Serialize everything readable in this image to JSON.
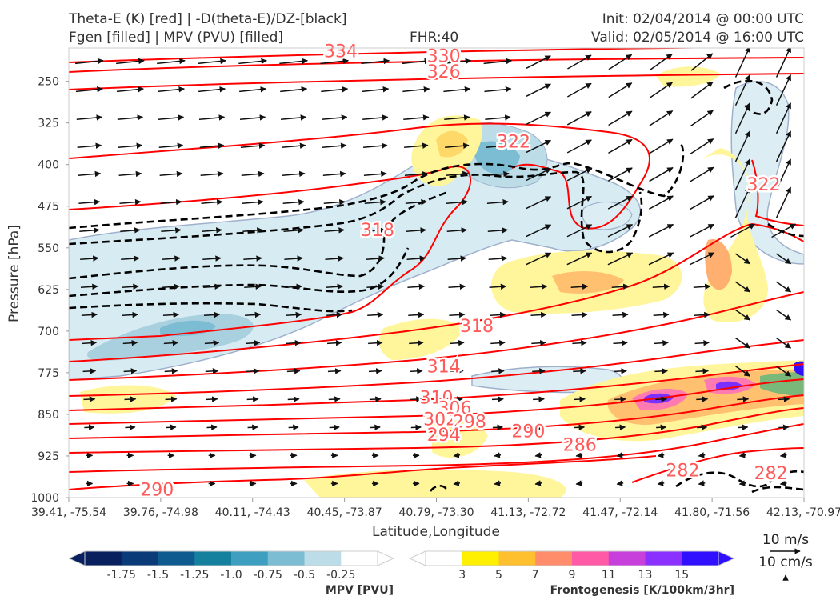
{
  "header": {
    "line1_left": "Theta-E (K) [red] | -D(theta-E)/DZ-[black]",
    "line2_left": "Fgen [filled] | MPV (PVU) [filled]",
    "fhr": "FHR:40",
    "init": "Init: 02/04/2014 @ 00:00 UTC",
    "valid": "Valid: 02/05/2014 @ 16:00 UTC"
  },
  "colors": {
    "theta_e": "#ff0000",
    "label_red": "#ff5a5a",
    "dtheta_dz": "#000000",
    "mpv_outline": "#9fb0cc",
    "arrows": "#111111"
  },
  "chart_data": {
    "type": "cross-section",
    "xlabel": "Latitude,Longitude",
    "ylabel": "Pressure [hPa]",
    "x_ticks": [
      "39.41, -75.54",
      "39.76, -74.98",
      "40.11, -74.43",
      "40.45, -73.87",
      "40.79, -73.30",
      "41.13, -72.72",
      "41.47, -72.14",
      "41.80, -71.56",
      "42.13, -70.97"
    ],
    "y_ticks": [
      250,
      325,
      400,
      475,
      550,
      625,
      700,
      775,
      850,
      925,
      1000
    ],
    "ylim": [
      1000,
      190
    ],
    "y_scale": "linear, inverted",
    "theta_e_labels": [
      {
        "value": "334",
        "x": 0.37,
        "p": 195
      },
      {
        "value": "330",
        "x": 0.51,
        "p": 204
      },
      {
        "value": "326",
        "x": 0.51,
        "p": 232
      },
      {
        "value": "322",
        "x": 0.605,
        "p": 358
      },
      {
        "value": "318",
        "x": 0.42,
        "p": 517
      },
      {
        "value": "318",
        "x": 0.555,
        "p": 690
      },
      {
        "value": "314",
        "x": 0.51,
        "p": 763
      },
      {
        "value": "310",
        "x": 0.5,
        "p": 819
      },
      {
        "value": "306",
        "x": 0.525,
        "p": 838
      },
      {
        "value": "302",
        "x": 0.505,
        "p": 858
      },
      {
        "value": "298",
        "x": 0.545,
        "p": 862
      },
      {
        "value": "294",
        "x": 0.51,
        "p": 886
      },
      {
        "value": "290",
        "x": 0.625,
        "p": 880
      },
      {
        "value": "286",
        "x": 0.695,
        "p": 904
      },
      {
        "value": "290",
        "x": 0.12,
        "p": 985
      },
      {
        "value": "282",
        "x": 0.835,
        "p": 950
      },
      {
        "value": "282",
        "x": 0.955,
        "p": 955
      },
      {
        "value": "322",
        "x": 0.945,
        "p": 435
      }
    ],
    "mpv_colorbar": {
      "title": "MPV [PVU]",
      "levels": [
        "-1.75",
        "-1.5",
        "-1.25",
        "-1.0",
        "-0.75",
        "-0.5",
        "-0.25"
      ],
      "colors": [
        "#08205e",
        "#0a3a78",
        "#0f5a8e",
        "#16809f",
        "#3f9fc0",
        "#7cbdd3",
        "#bcdde7",
        "#ffffff"
      ]
    },
    "fgen_colorbar": {
      "title": "Frontogenesis [K/100km/3hr]",
      "levels": [
        "3",
        "5",
        "7",
        "9",
        "11",
        "13",
        "15"
      ],
      "colors": [
        "#ffffff",
        "#ffef00",
        "#ffc030",
        "#ff8c6a",
        "#ff5aa6",
        "#c840dc",
        "#8a30ff",
        "#3010ff"
      ]
    },
    "vector_reference": {
      "u_label": "10 m/s",
      "w_label": "10 cm/s"
    }
  }
}
